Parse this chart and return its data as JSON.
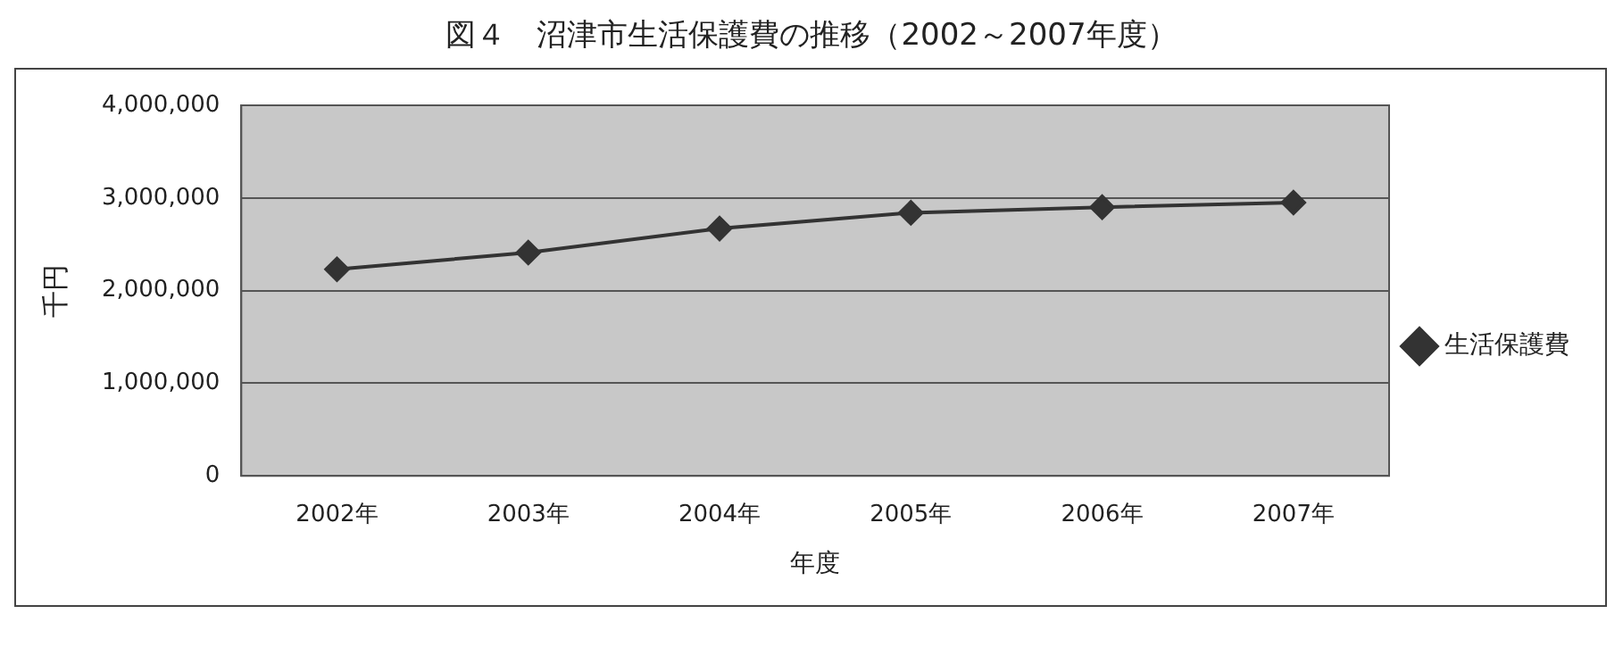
{
  "chart_data": {
    "type": "line",
    "title": "図４　沼津市生活保護費の推移（2002～2007年度）",
    "xlabel": "年度",
    "ylabel": "千円",
    "categories": [
      "2002年",
      "2003年",
      "2004年",
      "2005年",
      "2006年",
      "2007年"
    ],
    "series": [
      {
        "name": "生活保護費",
        "color": "#333333",
        "values": [
          2230000,
          2410000,
          2670000,
          2840000,
          2900000,
          2950000
        ]
      }
    ],
    "ylim": [
      0,
      4000000
    ],
    "yticks": [
      {
        "value": 0,
        "label": "0"
      },
      {
        "value": 1000000,
        "label": "1,000,000"
      },
      {
        "value": 2000000,
        "label": "2,000,000"
      },
      {
        "value": 3000000,
        "label": "3,000,000"
      },
      {
        "value": 4000000,
        "label": "4,000,000"
      }
    ],
    "grid": "y",
    "legend": "right",
    "marker": "diamond",
    "line_style": "solid"
  }
}
